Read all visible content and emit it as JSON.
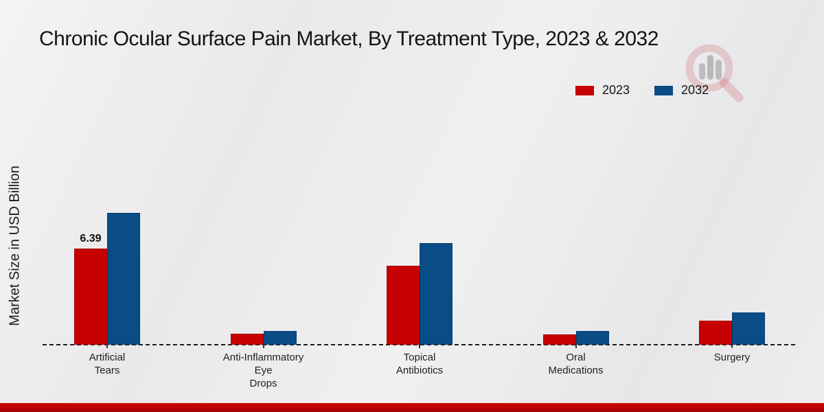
{
  "header": {
    "title": "Chronic Ocular Surface Pain Market, By Treatment Type, 2023 & 2032"
  },
  "icons": {
    "watermark": "magnifier-bar-chart-logo"
  },
  "colors": {
    "series_2023": "#c70101",
    "series_2032": "#0a4c86",
    "footer_band": "#b80202",
    "text": "#141414"
  },
  "chart_data": {
    "type": "bar",
    "title": "Chronic Ocular Surface Pain Market, By Treatment Type, 2023 & 2032",
    "xlabel": "",
    "ylabel": "Market Size in USD Billion",
    "categories": [
      "Artificial Tears",
      "Anti-Inflammatory Eye Drops",
      "Topical Antibiotics",
      "Oral Medications",
      "Surgery"
    ],
    "categories_display": [
      "Artificial\nTears",
      "Anti-Inflammatory\nEye\nDrops",
      "Topical\nAntibiotics",
      "Oral\nMedications",
      "Surgery"
    ],
    "series": [
      {
        "name": "2023",
        "color": "#c70101",
        "values": [
          6.39,
          0.74,
          5.23,
          0.67,
          1.58
        ]
      },
      {
        "name": "2032",
        "color": "#0a4c86",
        "values": [
          8.76,
          0.91,
          6.75,
          0.9,
          2.14
        ]
      }
    ],
    "bar_labels": [
      {
        "series_index": 0,
        "category_index": 0,
        "text": "6.39"
      }
    ],
    "ylim": [
      0,
      10
    ],
    "grid": false,
    "legend_position": "top-right",
    "baseline_style": "dashed",
    "axis_ticks_visible": false
  }
}
